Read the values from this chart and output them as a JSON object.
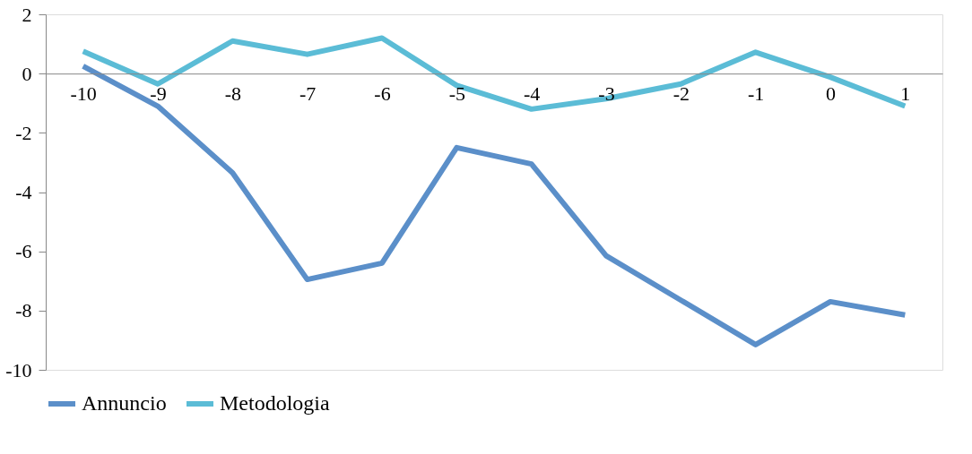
{
  "chart_data": {
    "type": "line",
    "categories": [
      "-10",
      "-9",
      "-8",
      "-7",
      "-6",
      "-5",
      "-4",
      "-3",
      "-2",
      "-1",
      "0",
      "1"
    ],
    "series": [
      {
        "name": "Annuncio",
        "color": "#5b8fc9",
        "values": [
          0.25,
          -1.1,
          -3.35,
          -6.95,
          -6.4,
          -2.5,
          -3.05,
          -6.15,
          -7.65,
          -9.15,
          -7.7,
          -8.15
        ]
      },
      {
        "name": "Metodologia",
        "color": "#5bbcd6",
        "values": [
          0.75,
          -0.35,
          1.1,
          0.65,
          1.2,
          -0.4,
          -1.2,
          -0.85,
          -0.35,
          0.72,
          -0.12,
          -1.1
        ]
      }
    ],
    "ylim": [
      -10,
      2
    ],
    "yticks": [
      -10,
      -8,
      -6,
      -4,
      -2,
      0,
      2
    ],
    "grid": false,
    "legend": "bottom",
    "marker": "none",
    "line_style": "solid"
  }
}
